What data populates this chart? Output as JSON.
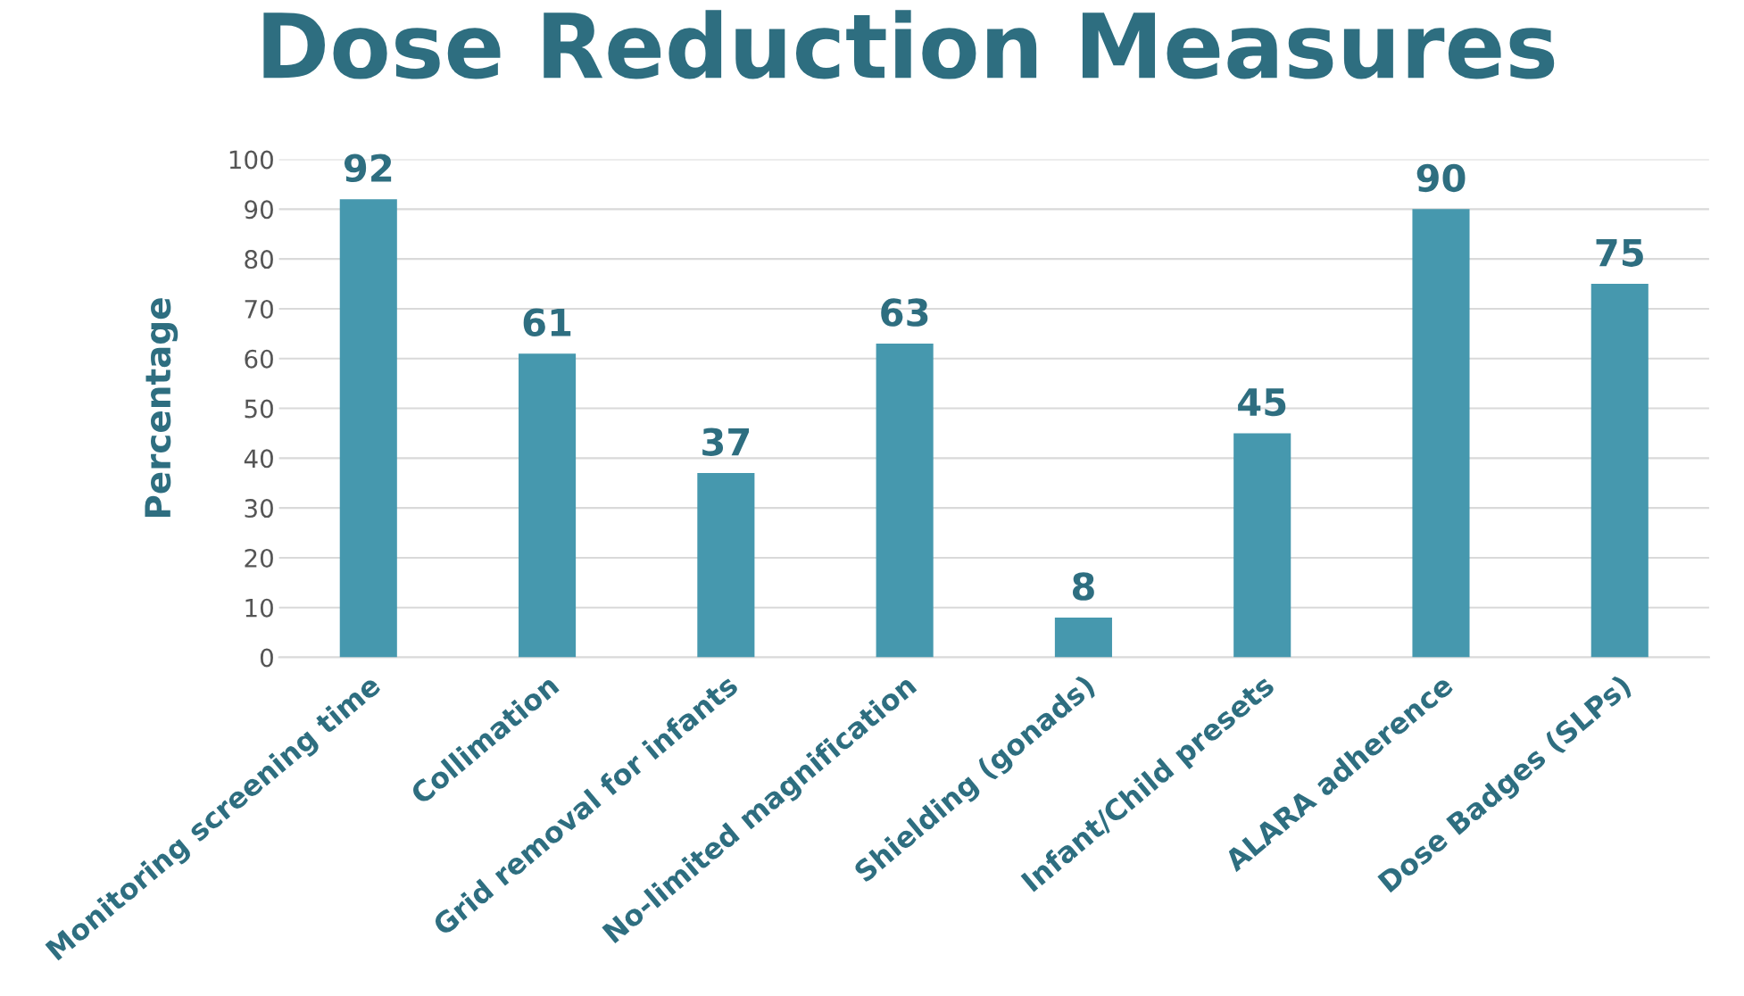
{
  "chart_data": {
    "type": "bar",
    "title": "Dose Reduction Measures",
    "ylabel": "Percentage",
    "categories": [
      "Monitoring screening time",
      "Collimation",
      "Grid removal for infants",
      "No-limited magnification",
      "Shielding (gonads)",
      "Infant/Child presets",
      "ALARA adherence",
      "Dose Badges (SLPs)"
    ],
    "values": [
      92,
      61,
      37,
      63,
      8,
      45,
      90,
      75
    ],
    "color": "#4698ae",
    "ylim": [
      0,
      100
    ],
    "yticks": [
      0,
      10,
      20,
      30,
      40,
      50,
      60,
      70,
      80,
      90,
      100
    ],
    "grid": "y",
    "data_labels": true,
    "legend": false
  }
}
